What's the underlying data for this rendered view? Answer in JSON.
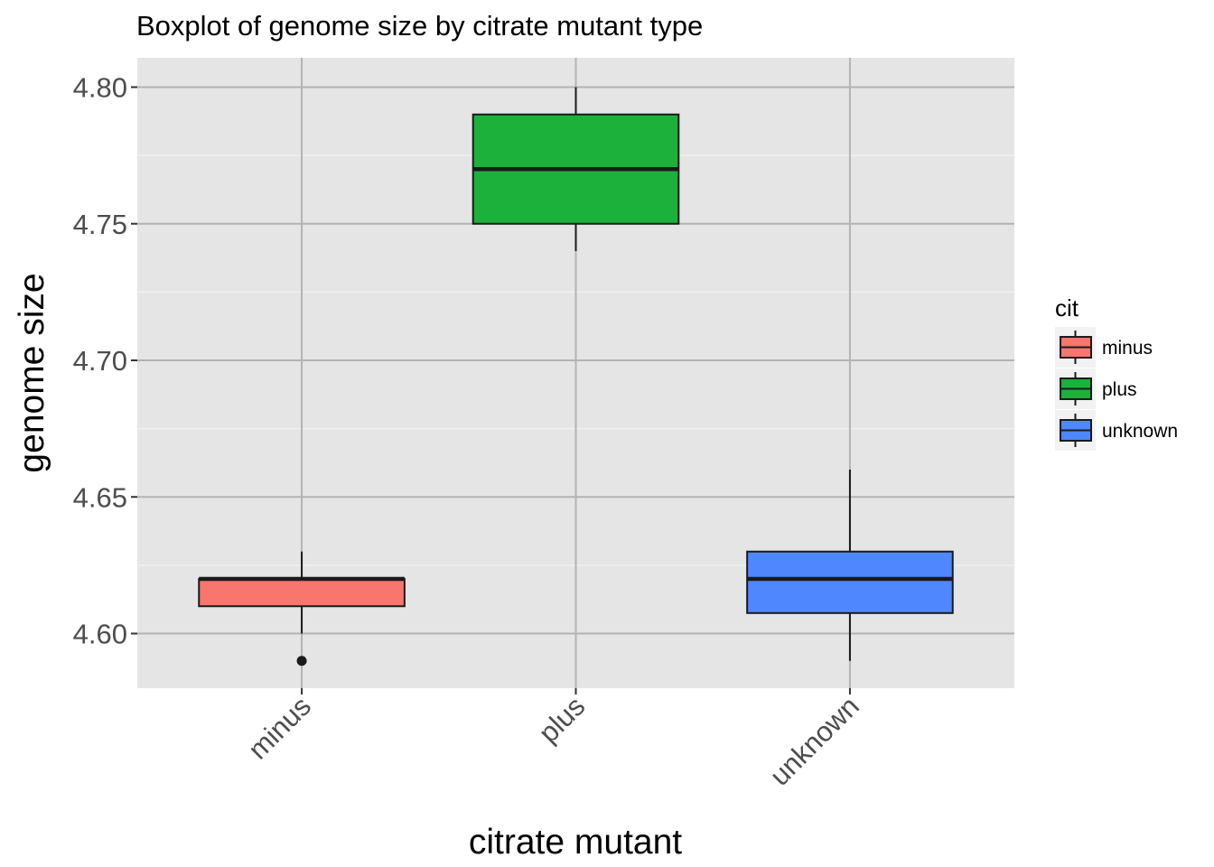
{
  "chart_data": {
    "type": "boxplot",
    "title": "Boxplot of genome size by citrate mutant type",
    "xlabel": "citrate mutant",
    "ylabel": "genome size",
    "ylim": [
      4.58,
      4.81
    ],
    "y_ticks": [
      4.6,
      4.65,
      4.7,
      4.75,
      4.8
    ],
    "y_tick_labels": [
      "4.60",
      "4.65",
      "4.70",
      "4.75",
      "4.80"
    ],
    "categories": [
      "minus",
      "plus",
      "unknown"
    ],
    "grid": true,
    "legend": {
      "title": "cit",
      "placement": "right",
      "entries": [
        "minus",
        "plus",
        "unknown"
      ]
    },
    "series": [
      {
        "category": "minus",
        "color": "#F8766D",
        "whisker_low": 4.6,
        "q1": 4.61,
        "median": 4.62,
        "q3": 4.62,
        "whisker_high": 4.63,
        "outliers": [
          4.59
        ]
      },
      {
        "category": "plus",
        "color": "#1BB13A",
        "whisker_low": 4.74,
        "q1": 4.75,
        "median": 4.77,
        "q3": 4.79,
        "whisker_high": 4.8,
        "outliers": []
      },
      {
        "category": "unknown",
        "color": "#4F87FF",
        "whisker_low": 4.59,
        "q1": 4.6075,
        "median": 4.62,
        "q3": 4.63,
        "whisker_high": 4.66,
        "outliers": []
      }
    ]
  }
}
